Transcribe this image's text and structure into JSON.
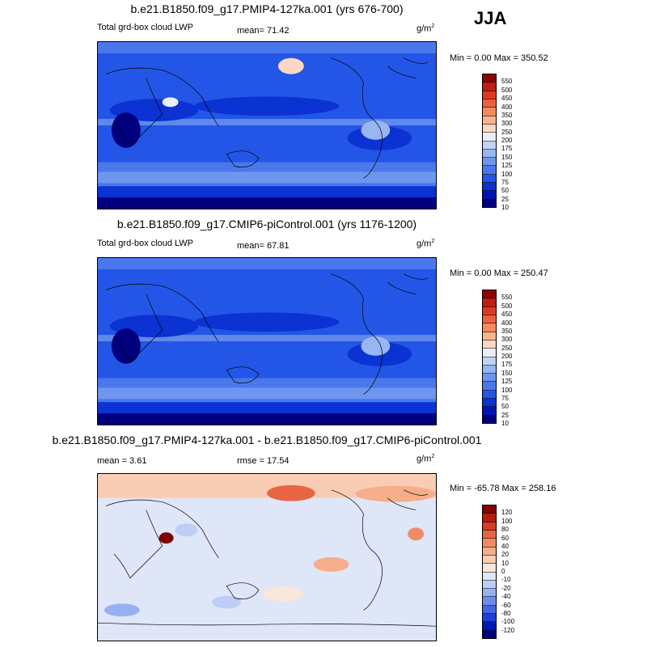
{
  "season": "JJA",
  "colors": {
    "lwp_scale": [
      "#00007f",
      "#0014b4",
      "#0b32d2",
      "#2356e6",
      "#4a78ec",
      "#6f96ee",
      "#98b6f2",
      "#c2d4f5",
      "#eaeef7",
      "#fbd7c4",
      "#f8b48f",
      "#f48a5f",
      "#ec603c",
      "#de3a22",
      "#c01c12",
      "#8e0405"
    ],
    "diff_scale": [
      "#00007f",
      "#0018b4",
      "#1c3fd8",
      "#4466e4",
      "#6d8dec",
      "#98b0f2",
      "#bdcdf5",
      "#dfe6f8",
      "#fbe6da",
      "#f9cdb3",
      "#f5ad8a",
      "#f08b66",
      "#e86543",
      "#d63d24",
      "#b51b10",
      "#810203"
    ]
  },
  "panels": [
    {
      "title": "b.e21.B1850.f09_g17.PMIP4-127ka.001 (yrs 676-700)",
      "left_label": "Total grd-box cloud LWP",
      "mean_text": "mean=  71.42",
      "units": "g/m",
      "units_exp": "2",
      "minmax": "Min =   0.00 Max = 350.52",
      "cbar_labels": [
        "550",
        "500",
        "450",
        "400",
        "350",
        "300",
        "250",
        "200",
        "175",
        "150",
        "125",
        "100",
        "75",
        "50",
        "25",
        "10"
      ]
    },
    {
      "title": "b.e21.B1850.f09_g17.CMIP6-piControl.001 (yrs 1176-1200)",
      "left_label": "Total grd-box cloud LWP",
      "mean_text": "mean=  67.81",
      "units": "g/m",
      "units_exp": "2",
      "minmax": "Min =   0.00 Max = 250.47",
      "cbar_labels": [
        "550",
        "500",
        "450",
        "400",
        "350",
        "300",
        "250",
        "200",
        "175",
        "150",
        "125",
        "100",
        "75",
        "50",
        "25",
        "10"
      ]
    },
    {
      "title": "b.e21.B1850.f09_g17.PMIP4-127ka.001 - b.e21.B1850.f09_g17.CMIP6-piControl.001",
      "mean_text": "mean =   3.61",
      "rmse_text": "rmse =  17.54",
      "units": "g/m",
      "units_exp": "2",
      "minmax": "Min = -65.78 Max = 258.16",
      "cbar_labels": [
        "120",
        "100",
        "80",
        "60",
        "40",
        "20",
        "10",
        "0",
        "-10",
        "-20",
        "-40",
        "-60",
        "-80",
        "-100",
        "-120"
      ]
    }
  ]
}
